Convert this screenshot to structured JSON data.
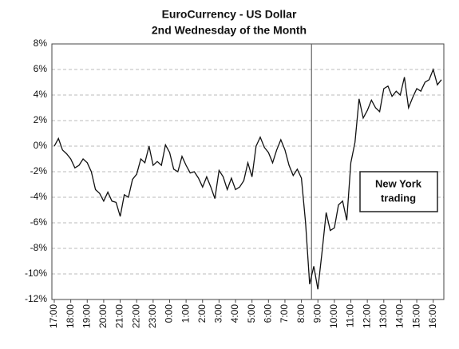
{
  "chart_data": {
    "type": "line",
    "title": "EuroCurrency - US Dollar",
    "subtitle": "2nd Wednesday of the Month",
    "annotation": [
      "New York",
      "trading"
    ],
    "marker_x": "9:00",
    "categories": [
      "17:00",
      null,
      null,
      null,
      "18:00",
      null,
      null,
      null,
      "19:00",
      null,
      null,
      null,
      "20:00",
      null,
      null,
      null,
      "21:00",
      null,
      null,
      null,
      "22:00",
      null,
      null,
      null,
      "23:00",
      null,
      null,
      null,
      "0:00",
      null,
      null,
      null,
      "1:00",
      null,
      null,
      null,
      "2:00",
      null,
      null,
      null,
      "3:00",
      null,
      null,
      null,
      "4:00",
      null,
      null,
      null,
      "5:00",
      null,
      null,
      null,
      "6:00",
      null,
      null,
      null,
      "7:00",
      null,
      null,
      null,
      "8:00",
      null,
      null,
      null,
      "9:00",
      null,
      null,
      null,
      "10:00",
      null,
      null,
      null,
      "11:00",
      null,
      null,
      null,
      "12:00",
      null,
      null,
      null,
      "13:00",
      null,
      null,
      null,
      "14:00",
      null,
      null,
      null,
      "15:00",
      null,
      null,
      null,
      "16:00",
      null,
      null
    ],
    "values": [
      0,
      0.6,
      -0.3,
      -0.6,
      -1.0,
      -1.7,
      -1.5,
      -1.0,
      -1.3,
      -2.0,
      -3.4,
      -3.7,
      -4.3,
      -3.6,
      -4.3,
      -4.4,
      -5.5,
      -3.8,
      -4.0,
      -2.6,
      -2.2,
      -1.0,
      -1.3,
      0.0,
      -1.5,
      -1.2,
      -1.5,
      0.1,
      -0.5,
      -1.8,
      -2.0,
      -0.8,
      -1.5,
      -2.1,
      -2.0,
      -2.5,
      -3.2,
      -2.4,
      -3.2,
      -4.1,
      -1.9,
      -2.4,
      -3.4,
      -2.5,
      -3.4,
      -3.2,
      -2.7,
      -1.3,
      -2.4,
      0.0,
      0.7,
      -0.1,
      -0.5,
      -1.3,
      -0.3,
      0.5,
      -0.3,
      -1.5,
      -2.3,
      -1.8,
      -2.5,
      -6.0,
      -10.8,
      -9.4,
      -11.2,
      -8.3,
      -5.2,
      -6.6,
      -6.4,
      -4.6,
      -4.3,
      -5.8,
      -1.3,
      0.3,
      3.7,
      2.2,
      2.8,
      3.6,
      3.0,
      2.7,
      4.5,
      4.7,
      3.9,
      4.3,
      4.0,
      5.4,
      3.0,
      3.8,
      4.5,
      4.3,
      5.0,
      5.2,
      6.0,
      4.8,
      5.2
    ],
    "color": "#111111",
    "ylim": [
      -12,
      8
    ],
    "yticks": [
      {
        "value": -12,
        "label": "-12%"
      },
      {
        "value": -10,
        "label": "-10%"
      },
      {
        "value": -8,
        "label": "-8%"
      },
      {
        "value": -6,
        "label": "-6%"
      },
      {
        "value": -4,
        "label": "-4%"
      },
      {
        "value": -2,
        "label": "-2%"
      },
      {
        "value": 0,
        "label": "0%"
      },
      {
        "value": 2,
        "label": "2%"
      },
      {
        "value": 4,
        "label": "4%"
      },
      {
        "value": 6,
        "label": "6%"
      },
      {
        "value": 8,
        "label": "8%"
      }
    ],
    "grid": true
  }
}
